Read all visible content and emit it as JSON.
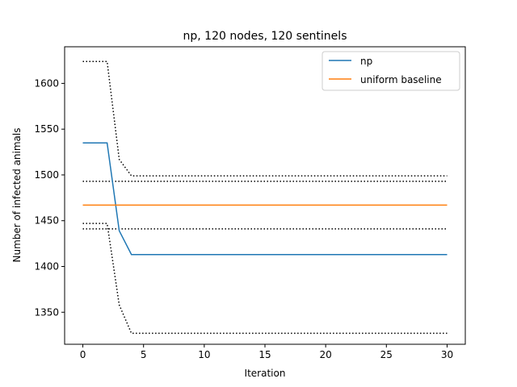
{
  "chart_data": {
    "type": "line",
    "title": "np, 120 nodes, 120 sentinels",
    "xlabel": "Iteration",
    "ylabel": "Number of infected animals",
    "xlim": [
      -1.5,
      31.5
    ],
    "ylim": [
      1315,
      1640
    ],
    "xticks": [
      0,
      5,
      10,
      15,
      20,
      25,
      30
    ],
    "yticks": [
      1350,
      1400,
      1450,
      1500,
      1550,
      1600
    ],
    "grid": false,
    "legend_position": "top-right",
    "series": [
      {
        "name": "np",
        "color": "#1f77b4",
        "style": "solid",
        "x": [
          0,
          2,
          3,
          4,
          30
        ],
        "y": [
          1535,
          1535,
          1439,
          1413,
          1413
        ]
      },
      {
        "name": "uniform baseline",
        "color": "#ff7f0e",
        "style": "solid",
        "x": [
          0,
          30
        ],
        "y": [
          1467,
          1467
        ]
      }
    ],
    "bounds": [
      {
        "color": "#000000",
        "style": "dotted",
        "x": [
          0,
          2,
          3,
          4,
          30
        ],
        "y": [
          1624,
          1624,
          1517,
          1499,
          1499
        ]
      },
      {
        "color": "#000000",
        "style": "dotted",
        "x": [
          0,
          2,
          3,
          4,
          30
        ],
        "y": [
          1447,
          1447,
          1358,
          1327,
          1327
        ]
      },
      {
        "color": "#000000",
        "style": "dotted",
        "x": [
          0,
          30
        ],
        "y": [
          1493,
          1493
        ]
      },
      {
        "color": "#000000",
        "style": "dotted",
        "x": [
          0,
          30
        ],
        "y": [
          1441,
          1441
        ]
      }
    ]
  }
}
